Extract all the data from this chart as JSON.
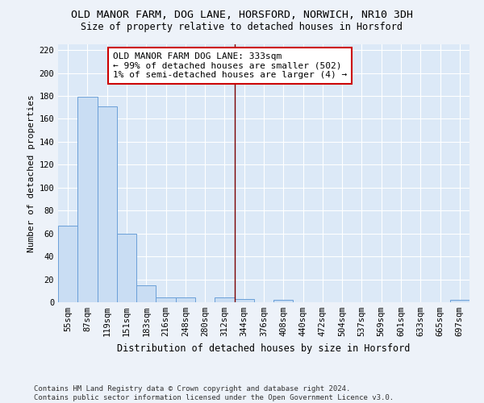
{
  "title": "OLD MANOR FARM, DOG LANE, HORSFORD, NORWICH, NR10 3DH",
  "subtitle": "Size of property relative to detached houses in Horsford",
  "xlabel": "Distribution of detached houses by size in Horsford",
  "ylabel": "Number of detached properties",
  "bar_labels": [
    "55sqm",
    "87sqm",
    "119sqm",
    "151sqm",
    "183sqm",
    "216sqm",
    "248sqm",
    "280sqm",
    "312sqm",
    "344sqm",
    "376sqm",
    "408sqm",
    "440sqm",
    "472sqm",
    "504sqm",
    "537sqm",
    "569sqm",
    "601sqm",
    "633sqm",
    "665sqm",
    "697sqm"
  ],
  "bar_values": [
    67,
    179,
    171,
    60,
    15,
    4,
    4,
    0,
    4,
    3,
    0,
    2,
    0,
    0,
    0,
    0,
    0,
    0,
    0,
    0,
    2
  ],
  "bar_color": "#c9ddf3",
  "bar_edge_color": "#6a9fd8",
  "property_line_x": 8.5,
  "property_line_color": "#7b0000",
  "annotation_text": "OLD MANOR FARM DOG LANE: 333sqm\n← 99% of detached houses are smaller (502)\n1% of semi-detached houses are larger (4) →",
  "annotation_box_facecolor": "#ffffff",
  "annotation_box_edgecolor": "#cc0000",
  "ylim": [
    0,
    225
  ],
  "yticks": [
    0,
    20,
    40,
    60,
    80,
    100,
    120,
    140,
    160,
    180,
    200,
    220
  ],
  "footer_text": "Contains HM Land Registry data © Crown copyright and database right 2024.\nContains public sector information licensed under the Open Government Licence v3.0.",
  "fig_background": "#edf2f9",
  "ax_background": "#dce9f7",
  "grid_color": "#ffffff",
  "title_fontsize": 9.5,
  "subtitle_fontsize": 8.5,
  "xlabel_fontsize": 8.5,
  "ylabel_fontsize": 8,
  "tick_fontsize": 7.5,
  "annotation_fontsize": 8,
  "footer_fontsize": 6.5
}
